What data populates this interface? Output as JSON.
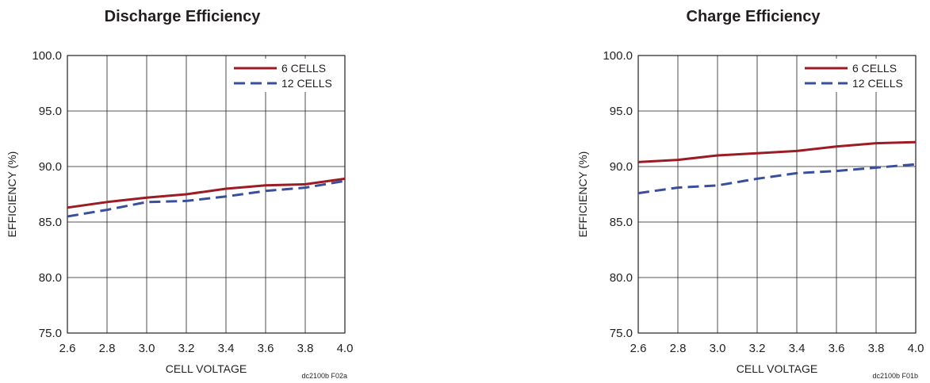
{
  "chart_data": [
    {
      "type": "line",
      "title": "Discharge Efficiency",
      "xlabel": "CELL VOLTAGE",
      "ylabel": "EFFICIENCY (%)",
      "figure_code": "dc2100b F02a",
      "x": [
        2.6,
        2.8,
        3.0,
        3.2,
        3.4,
        3.6,
        3.8,
        4.0
      ],
      "x_tick_labels": [
        "2.6",
        "2.8",
        "3.0",
        "3.2",
        "3.4",
        "3.6",
        "3.8",
        "4.0"
      ],
      "y_tick_labels": [
        "75.0",
        "80.0",
        "85.0",
        "90.0",
        "95.0",
        "100.0"
      ],
      "xlim": [
        2.6,
        4.0
      ],
      "ylim": [
        75,
        100
      ],
      "grid": true,
      "legend_position": "top-right",
      "series": [
        {
          "name": "6 CELLS",
          "color": "#9b1c24",
          "dash": "solid",
          "values": [
            86.3,
            86.8,
            87.2,
            87.5,
            88.0,
            88.3,
            88.4,
            88.9
          ]
        },
        {
          "name": "12 CELLS",
          "color": "#3a4f9c",
          "dash": "dashed",
          "values": [
            85.5,
            86.1,
            86.8,
            86.9,
            87.3,
            87.8,
            88.1,
            88.7
          ]
        }
      ]
    },
    {
      "type": "line",
      "title": "Charge Efficiency",
      "xlabel": "CELL VOLTAGE",
      "ylabel": "EFFICIENCY (%)",
      "figure_code": "dc2100b F01b",
      "x": [
        2.6,
        2.8,
        3.0,
        3.2,
        3.4,
        3.6,
        3.8,
        4.0
      ],
      "x_tick_labels": [
        "2.6",
        "2.8",
        "3.0",
        "3.2",
        "3.4",
        "3.6",
        "3.8",
        "4.0"
      ],
      "y_tick_labels": [
        "75.0",
        "80.0",
        "85.0",
        "90.0",
        "95.0",
        "100.0"
      ],
      "xlim": [
        2.6,
        4.0
      ],
      "ylim": [
        75,
        100
      ],
      "grid": true,
      "legend_position": "top-right",
      "series": [
        {
          "name": "6 CELLS",
          "color": "#9b1c24",
          "dash": "solid",
          "values": [
            90.4,
            90.6,
            91.0,
            91.2,
            91.4,
            91.8,
            92.1,
            92.2
          ]
        },
        {
          "name": "12 CELLS",
          "color": "#3a4f9c",
          "dash": "dashed",
          "values": [
            87.6,
            88.1,
            88.3,
            88.9,
            89.4,
            89.6,
            89.9,
            90.2
          ]
        }
      ]
    }
  ]
}
